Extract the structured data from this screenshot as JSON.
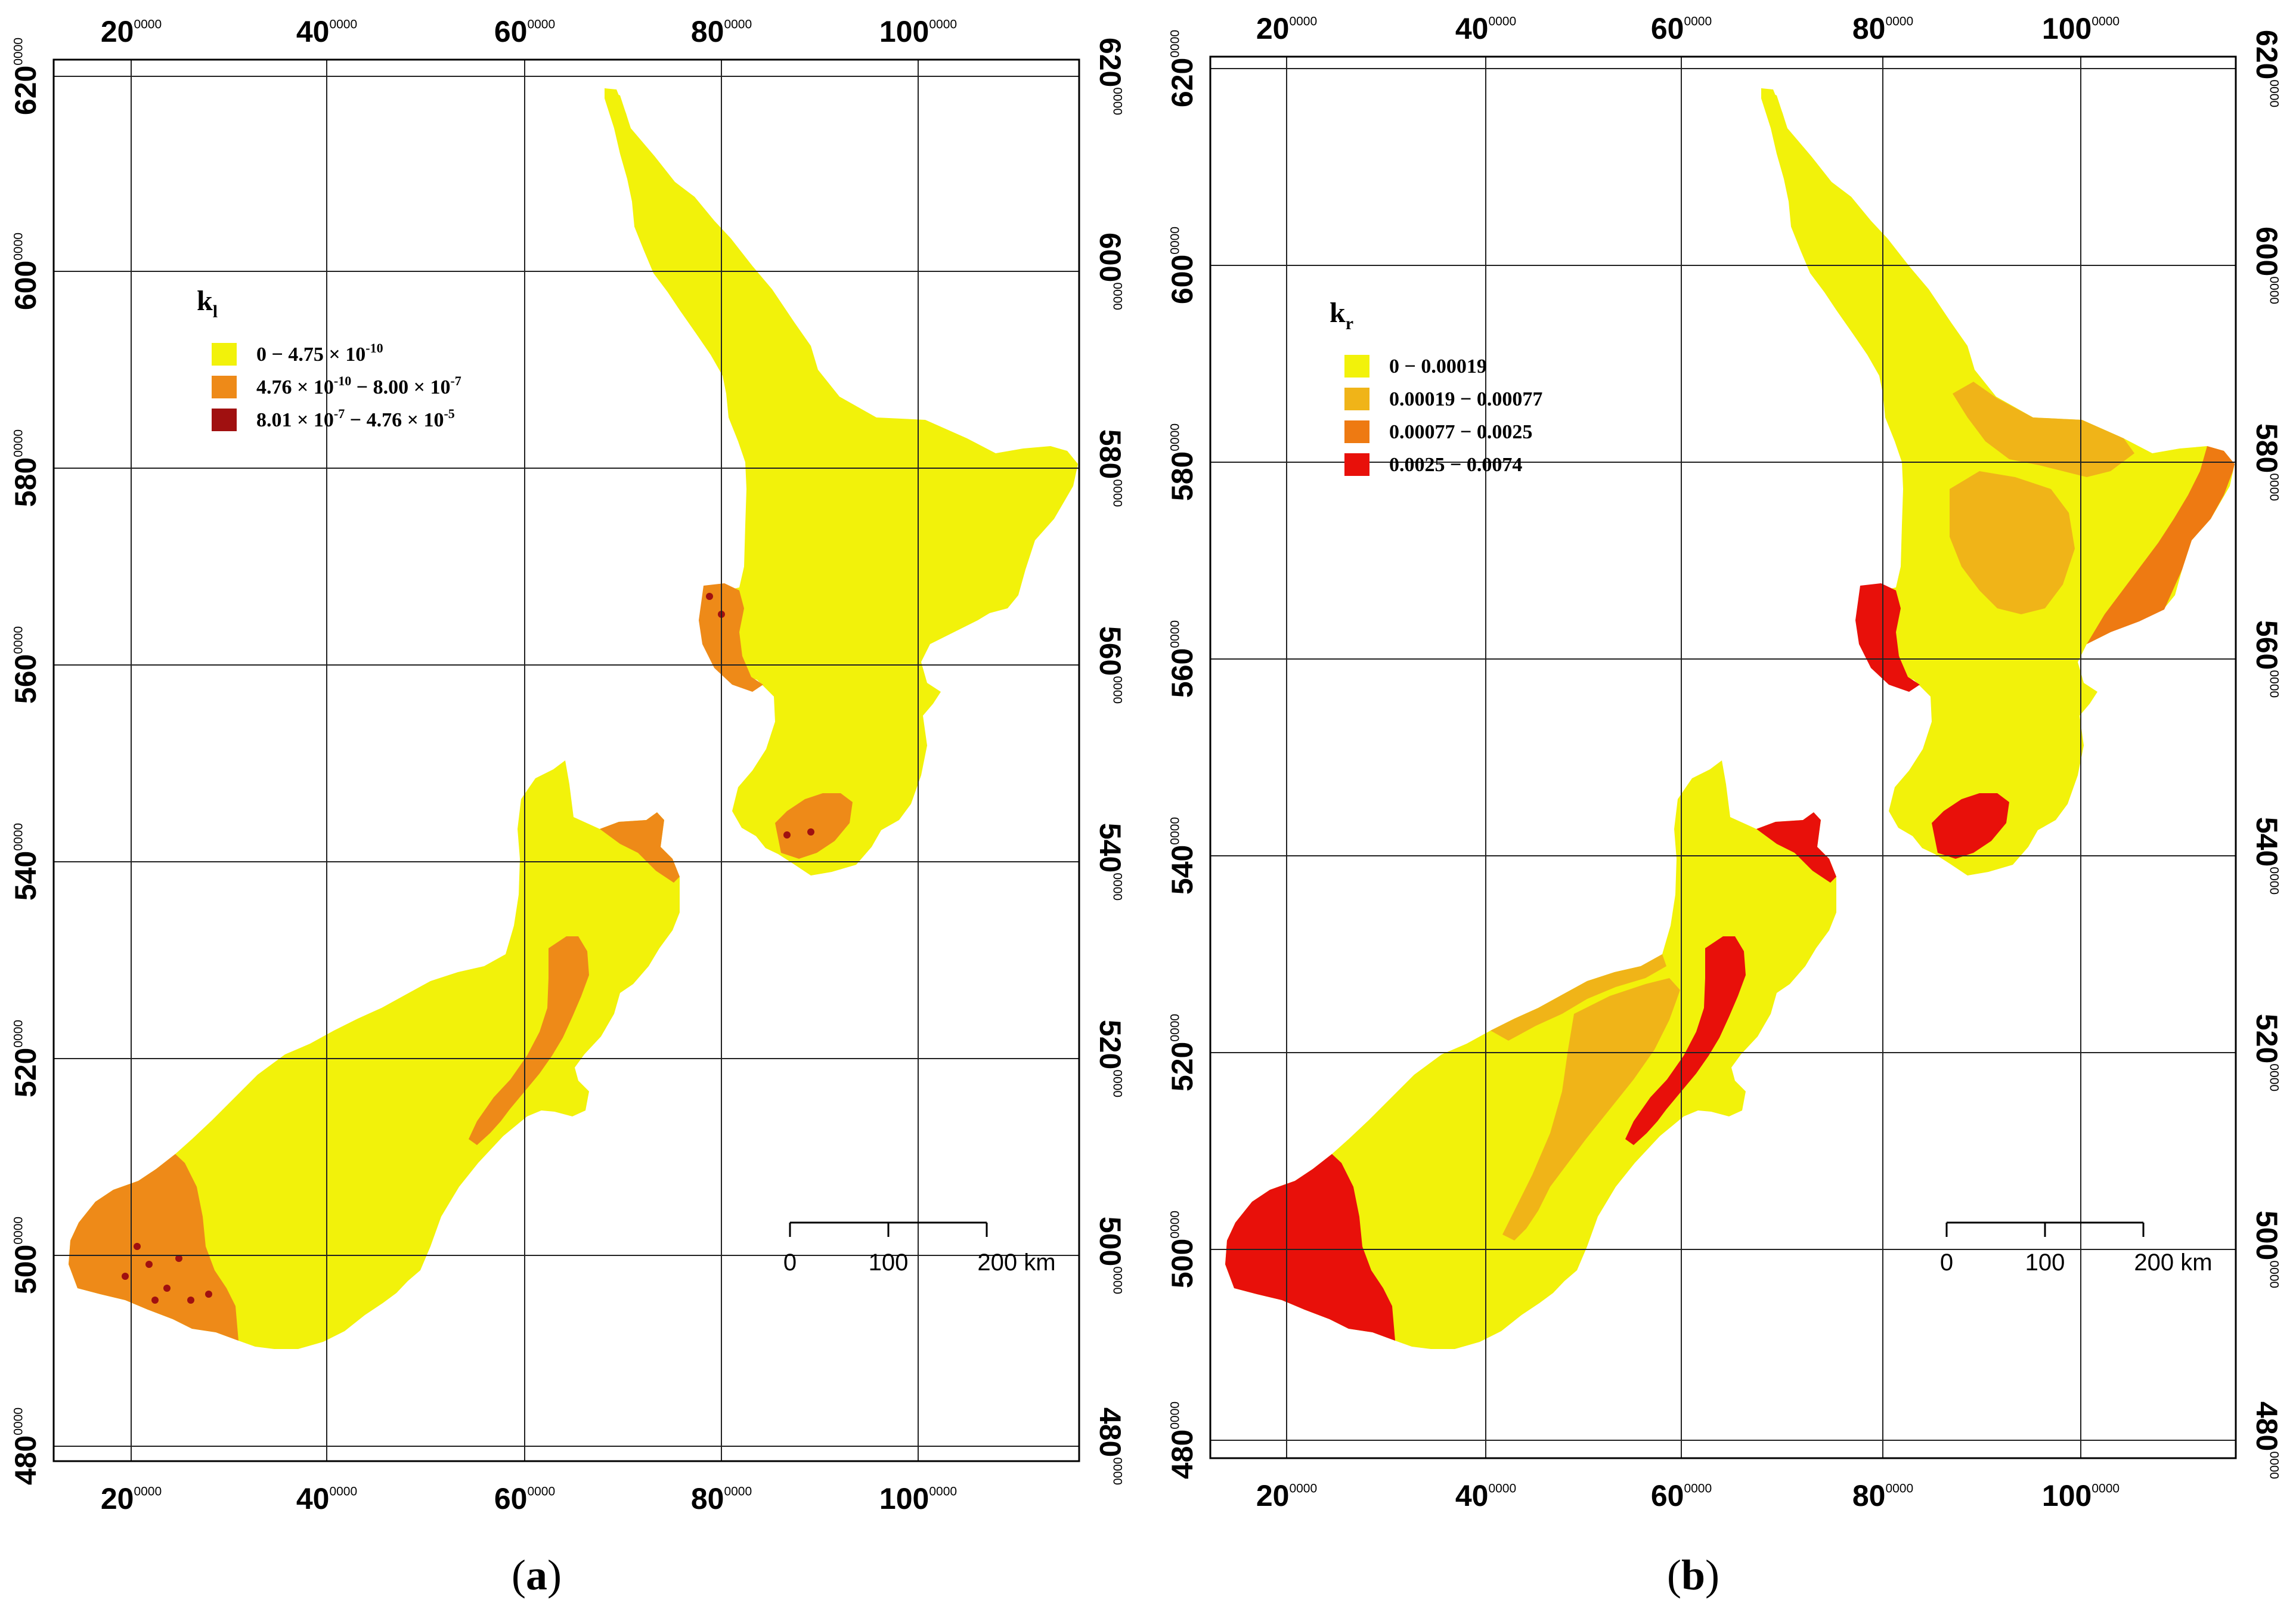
{
  "figure": {
    "panels": [
      {
        "id": "a",
        "caption": "(a)",
        "caption_letter": "a",
        "legend_title": "k",
        "legend_title_sub": "l",
        "legend_items": [
          {
            "color": "#f2f20a",
            "parts": [
              [
                "0 − 4.75 × 10",
                ""
              ],
              [
                "-10",
                "sup"
              ]
            ]
          },
          {
            "color": "#ee8a18",
            "parts": [
              [
                "4.76 × 10",
                ""
              ],
              [
                "-10",
                "sup"
              ],
              [
                " − 8.00 × 10",
                ""
              ],
              [
                "-7",
                "sup"
              ]
            ]
          },
          {
            "color": "#a01010",
            "parts": [
              [
                "8.01 × 10",
                ""
              ],
              [
                "-7",
                "sup"
              ],
              [
                " − 4.76 × 10",
                ""
              ],
              [
                "-5",
                "sup"
              ]
            ]
          }
        ],
        "class_colors": [
          "#f2f20a",
          "#ee8a18",
          "#a01010"
        ]
      },
      {
        "id": "b",
        "caption": "(b)",
        "caption_letter": "b",
        "legend_title": "k",
        "legend_title_sub": "r",
        "legend_items": [
          {
            "color": "#f2f20a",
            "parts": [
              [
                "0 − 0.00019",
                ""
              ]
            ]
          },
          {
            "color": "#f0b418",
            "parts": [
              [
                "0.00019 − 0.00077",
                ""
              ]
            ]
          },
          {
            "color": "#ee7a12",
            "parts": [
              [
                "0.00077 − 0.0025",
                ""
              ]
            ]
          },
          {
            "color": "#e8100a",
            "parts": [
              [
                "0.0025 − 0.0074",
                ""
              ]
            ]
          }
        ],
        "class_colors": [
          "#f2f20a",
          "#f0b418",
          "#ee7a12",
          "#e8100a"
        ]
      }
    ],
    "x_ticks": [
      {
        "major": "20",
        "minor": "0000"
      },
      {
        "major": "40",
        "minor": "0000"
      },
      {
        "major": "60",
        "minor": "0000"
      },
      {
        "major": "80",
        "minor": "0000"
      },
      {
        "major": "100",
        "minor": "0000"
      }
    ],
    "y_ticks": [
      {
        "major": "620",
        "minor": "0000"
      },
      {
        "major": "600",
        "minor": "0000"
      },
      {
        "major": "580",
        "minor": "0000"
      },
      {
        "major": "560",
        "minor": "0000"
      },
      {
        "major": "540",
        "minor": "0000"
      },
      {
        "major": "520",
        "minor": "0000"
      },
      {
        "major": "500",
        "minor": "0000"
      },
      {
        "major": "480",
        "minor": "0000"
      }
    ],
    "scale_bar": {
      "labels": [
        "0",
        "100",
        "200 km"
      ]
    },
    "colors": {
      "grid": "#222222",
      "frame": "#000000",
      "background": "#ffffff"
    }
  }
}
